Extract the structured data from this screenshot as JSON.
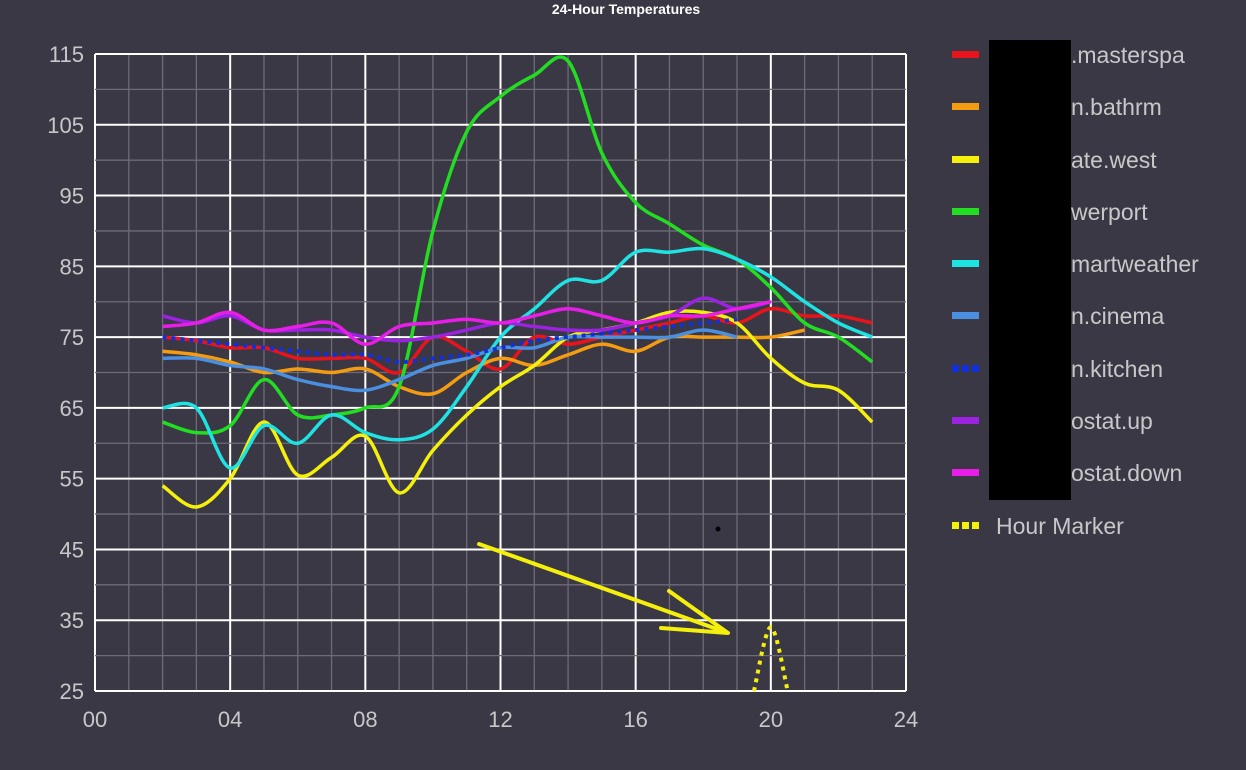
{
  "chart_data": {
    "type": "line",
    "title": "24-Hour Temperatures",
    "xlabel": "",
    "ylabel": "",
    "xlim": [
      0,
      24
    ],
    "ylim": [
      25,
      115
    ],
    "x_ticks": [
      "00",
      "04",
      "08",
      "12",
      "16",
      "20",
      "24"
    ],
    "y_ticks": [
      "25",
      "35",
      "45",
      "55",
      "65",
      "75",
      "85",
      "95",
      "105",
      "115"
    ],
    "grid": true,
    "legend_position": "right",
    "series": [
      {
        "name": ".masterspa",
        "color": "#e8141b",
        "style": "solid",
        "points": [
          [
            2,
            75
          ],
          [
            3,
            74.5
          ],
          [
            4,
            73.5
          ],
          [
            5,
            73.5
          ],
          [
            6,
            72
          ],
          [
            7,
            72
          ],
          [
            8,
            72
          ],
          [
            9,
            70
          ],
          [
            10,
            75
          ],
          [
            11,
            73
          ],
          [
            12,
            70.5
          ],
          [
            13,
            75
          ],
          [
            14,
            74
          ],
          [
            15,
            75
          ],
          [
            16,
            76
          ],
          [
            17,
            77
          ],
          [
            18,
            78
          ],
          [
            19,
            77
          ],
          [
            20,
            79
          ],
          [
            21,
            78
          ],
          [
            22,
            78
          ],
          [
            23,
            77
          ]
        ]
      },
      {
        "name": "n.bathrm",
        "color": "#f39c12",
        "style": "solid",
        "points": [
          [
            2,
            73
          ],
          [
            3,
            72.5
          ],
          [
            4,
            71.5
          ],
          [
            5,
            70
          ],
          [
            6,
            70.5
          ],
          [
            7,
            70
          ],
          [
            8,
            70.5
          ],
          [
            9,
            68
          ],
          [
            10,
            67
          ],
          [
            11,
            70
          ],
          [
            12,
            72
          ],
          [
            13,
            71
          ],
          [
            14,
            72.5
          ],
          [
            15,
            74
          ],
          [
            16,
            73
          ],
          [
            17,
            75
          ],
          [
            18,
            75
          ],
          [
            19,
            75
          ],
          [
            20,
            75
          ],
          [
            21,
            76
          ]
        ]
      },
      {
        "name": "ate.west",
        "color": "#f5ef0c",
        "style": "solid",
        "points": [
          [
            2,
            54
          ],
          [
            3,
            51
          ],
          [
            4,
            55
          ],
          [
            5,
            63
          ],
          [
            6,
            55.5
          ],
          [
            7,
            58
          ],
          [
            8,
            61
          ],
          [
            9,
            53
          ],
          [
            10,
            59
          ],
          [
            11,
            64
          ],
          [
            12,
            68
          ],
          [
            13,
            71
          ],
          [
            14,
            75
          ],
          [
            15,
            76
          ],
          [
            16,
            77
          ],
          [
            17,
            78.5
          ],
          [
            18,
            78.5
          ],
          [
            19,
            77
          ],
          [
            20,
            72
          ],
          [
            21,
            68.5
          ],
          [
            22,
            67.5
          ],
          [
            23,
            63
          ]
        ]
      },
      {
        "name": "werport",
        "color": "#22dd22",
        "style": "solid",
        "points": [
          [
            2,
            63
          ],
          [
            3,
            61.5
          ],
          [
            4,
            62.5
          ],
          [
            5,
            69
          ],
          [
            6,
            64
          ],
          [
            7,
            64
          ],
          [
            8,
            65
          ],
          [
            9,
            68
          ],
          [
            10,
            90
          ],
          [
            11,
            104
          ],
          [
            12,
            109
          ],
          [
            13,
            112
          ],
          [
            14,
            114
          ],
          [
            15,
            101
          ],
          [
            16,
            94
          ],
          [
            17,
            91
          ],
          [
            18,
            88
          ],
          [
            19,
            86
          ],
          [
            20,
            82
          ],
          [
            21,
            77
          ],
          [
            22,
            75
          ],
          [
            23,
            71.5
          ]
        ]
      },
      {
        "name": "martweather",
        "color": "#1fe3e3",
        "style": "solid",
        "points": [
          [
            2,
            65
          ],
          [
            3,
            65
          ],
          [
            4,
            56.5
          ],
          [
            5,
            62.5
          ],
          [
            6,
            60
          ],
          [
            7,
            64
          ],
          [
            8,
            61.5
          ],
          [
            9,
            60.5
          ],
          [
            10,
            62
          ],
          [
            11,
            68
          ],
          [
            12,
            75
          ],
          [
            13,
            79
          ],
          [
            14,
            83
          ],
          [
            15,
            83
          ],
          [
            16,
            87
          ],
          [
            17,
            87
          ],
          [
            18,
            87.5
          ],
          [
            19,
            86
          ],
          [
            20,
            83.5
          ],
          [
            21,
            80
          ],
          [
            22,
            77
          ],
          [
            23,
            75
          ]
        ]
      },
      {
        "name": "n.cinema",
        "color": "#4a8fe0",
        "style": "solid",
        "points": [
          [
            2,
            72
          ],
          [
            3,
            72
          ],
          [
            4,
            71
          ],
          [
            5,
            70.5
          ],
          [
            6,
            69
          ],
          [
            7,
            68
          ],
          [
            8,
            67.5
          ],
          [
            9,
            69
          ],
          [
            10,
            71
          ],
          [
            11,
            72
          ],
          [
            12,
            73.5
          ],
          [
            13,
            73.5
          ],
          [
            14,
            75
          ],
          [
            15,
            75
          ],
          [
            16,
            75
          ],
          [
            17,
            75
          ],
          [
            18,
            76
          ],
          [
            19,
            75
          ]
        ]
      },
      {
        "name": "n.kitchen",
        "color": "#1030e0",
        "style": "dotted",
        "points": [
          [
            2,
            75
          ],
          [
            3,
            74.5
          ],
          [
            4,
            74
          ],
          [
            5,
            73.5
          ],
          [
            6,
            73
          ],
          [
            7,
            72.5
          ],
          [
            8,
            72.5
          ],
          [
            9,
            71.5
          ],
          [
            10,
            72
          ],
          [
            11,
            72.5
          ],
          [
            12,
            73.5
          ],
          [
            13,
            74.5
          ],
          [
            14,
            75
          ],
          [
            15,
            75.5
          ],
          [
            16,
            76
          ],
          [
            17,
            76.5
          ],
          [
            18,
            77
          ],
          [
            19,
            77.5
          ]
        ]
      },
      {
        "name": "ostat.up",
        "color": "#9b22e0",
        "style": "solid",
        "points": [
          [
            2,
            78
          ],
          [
            3,
            77
          ],
          [
            4,
            78
          ],
          [
            5,
            76
          ],
          [
            6,
            76
          ],
          [
            7,
            76
          ],
          [
            8,
            75
          ],
          [
            9,
            74.5
          ],
          [
            10,
            75
          ],
          [
            11,
            76
          ],
          [
            12,
            77
          ],
          [
            13,
            76.5
          ],
          [
            14,
            76
          ],
          [
            15,
            76
          ],
          [
            16,
            77
          ],
          [
            17,
            78
          ],
          [
            18,
            80.5
          ],
          [
            19,
            79
          ],
          [
            20,
            80
          ]
        ]
      },
      {
        "name": "ostat.down",
        "color": "#e81ee8",
        "style": "solid",
        "points": [
          [
            2,
            76.5
          ],
          [
            3,
            77
          ],
          [
            4,
            78.5
          ],
          [
            5,
            76
          ],
          [
            6,
            76.5
          ],
          [
            7,
            77
          ],
          [
            8,
            74
          ],
          [
            9,
            76.5
          ],
          [
            10,
            77
          ],
          [
            11,
            77.5
          ],
          [
            12,
            77
          ],
          [
            13,
            78
          ],
          [
            14,
            79
          ],
          [
            15,
            78
          ],
          [
            16,
            77
          ],
          [
            17,
            78
          ],
          [
            18,
            78
          ],
          [
            19,
            79
          ],
          [
            20,
            80
          ]
        ]
      },
      {
        "name": "Hour Marker",
        "color": "#f5ef0c",
        "style": "dotted",
        "points": [
          [
            19.5,
            25
          ],
          [
            20,
            34
          ],
          [
            20.5,
            25
          ]
        ]
      }
    ]
  },
  "annotation": {
    "arrow_color": "#f5ef0c"
  }
}
